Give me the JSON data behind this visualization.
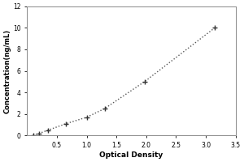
{
  "xlabel": "Optical Density",
  "ylabel": "Concentration(ng/mL)",
  "x_data": [
    0.1,
    0.2,
    0.35,
    0.65,
    1.0,
    1.3,
    1.97,
    3.15
  ],
  "y_data": [
    0.05,
    0.2,
    0.5,
    1.1,
    1.7,
    2.5,
    5.0,
    10.0
  ],
  "xlim": [
    0,
    3.5
  ],
  "ylim": [
    0,
    12
  ],
  "xticks": [
    0.5,
    1.0,
    1.5,
    2.0,
    2.5,
    3.0,
    3.5
  ],
  "yticks": [
    0,
    2,
    4,
    6,
    8,
    10,
    12
  ],
  "line_color": "#555555",
  "marker": "+",
  "marker_color": "#333333",
  "marker_size": 5,
  "line_style": "dotted",
  "background_color": "#ffffff",
  "box_color": "#888888",
  "xlabel_fontsize": 6.5,
  "ylabel_fontsize": 6,
  "tick_fontsize": 5.5,
  "figsize": [
    3.0,
    2.0
  ],
  "dpi": 100
}
